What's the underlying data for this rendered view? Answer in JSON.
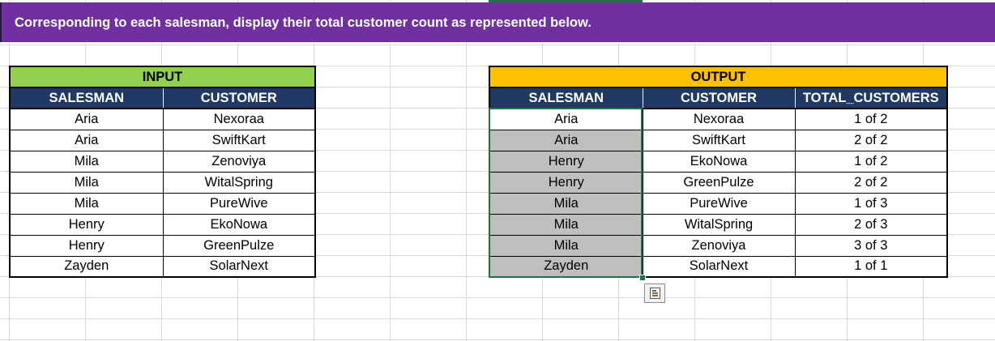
{
  "banner": {
    "text": "Corresponding to each salesman, display their total customer count as represented below.",
    "background": "#7030a0"
  },
  "input": {
    "title": "INPUT",
    "title_color": "#92d050",
    "headers": [
      "SALESMAN",
      "CUSTOMER"
    ],
    "header_color": "#1f3864",
    "rows": [
      [
        "Aria",
        "Nexoraa"
      ],
      [
        "Aria",
        "SwiftKart"
      ],
      [
        "Mila",
        "Zenoviya"
      ],
      [
        "Mila",
        "WitalSpring"
      ],
      [
        "Mila",
        "PureWive"
      ],
      [
        "Henry",
        "EkoNowa"
      ],
      [
        "Henry",
        "GreenPulze"
      ],
      [
        "Zayden",
        "SolarNext"
      ]
    ]
  },
  "output": {
    "title": "OUTPUT",
    "title_color": "#ffc000",
    "headers": [
      "SALESMAN",
      "CUSTOMER",
      "TOTAL_CUSTOMERS"
    ],
    "rows": [
      [
        "Aria",
        "Nexoraa",
        "1 of 2"
      ],
      [
        "Aria",
        "SwiftKart",
        "2 of 2"
      ],
      [
        "Henry",
        "EkoNowa",
        "1 of 2"
      ],
      [
        "Henry",
        "GreenPulze",
        "2 of 2"
      ],
      [
        "Mila",
        "PureWive",
        "1 of 3"
      ],
      [
        "Mila",
        "WitalSpring",
        "2 of 3"
      ],
      [
        "Mila",
        "Zenoviya",
        "3 of 3"
      ],
      [
        "Zayden",
        "SolarNext",
        "1 of 1"
      ]
    ],
    "selection_fill": "#bfbfbf",
    "selection_border": "#217346"
  },
  "quick_analysis": {
    "icon": "quick-analysis-icon"
  }
}
